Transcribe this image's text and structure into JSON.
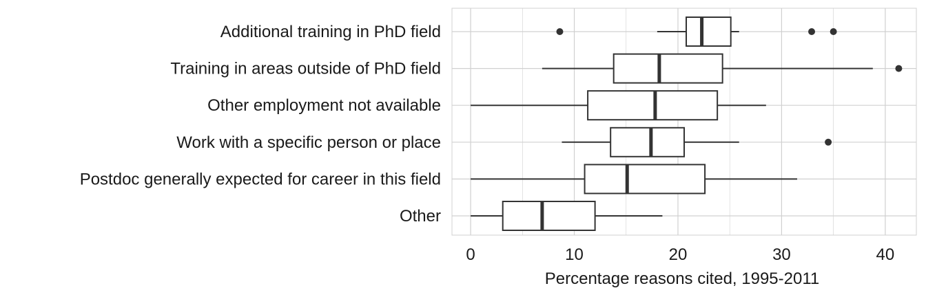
{
  "chart_data": {
    "type": "boxplot",
    "orientation": "horizontal",
    "title": "",
    "xlabel": "Percentage reasons cited, 1995-2011",
    "ylabel": "",
    "xlim": [
      -1.8,
      43
    ],
    "xticks": [
      0,
      10,
      20,
      30,
      40
    ],
    "xtick_labels": [
      "0",
      "10",
      "20",
      "30",
      "40"
    ],
    "grid": true,
    "legend": "none",
    "colors": {
      "box_stroke": "#333333",
      "box_fill": "#ffffff",
      "outlier": "#333333",
      "grid": "#d0d0d0"
    },
    "categories": [
      "Additional training in PhD field",
      "Training in areas outside of PhD field",
      "Other employment not available",
      "Work with a specific person or place",
      "Postdoc generally expected for career in this field",
      "Other"
    ],
    "boxes": [
      {
        "category": "Additional training in PhD field",
        "whisker_low": 18.0,
        "q1": 20.8,
        "median": 22.3,
        "q3": 25.1,
        "whisker_high": 25.9,
        "outliers": [
          8.6,
          32.9,
          35.0
        ]
      },
      {
        "category": "Training in areas outside of PhD field",
        "whisker_low": 6.9,
        "q1": 13.8,
        "median": 18.2,
        "q3": 24.3,
        "whisker_high": 38.8,
        "outliers": [
          41.3
        ]
      },
      {
        "category": "Other employment not available",
        "whisker_low": 0.0,
        "q1": 11.3,
        "median": 17.8,
        "q3": 23.8,
        "whisker_high": 28.5,
        "outliers": []
      },
      {
        "category": "Work with a specific person or place",
        "whisker_low": 8.8,
        "q1": 13.5,
        "median": 17.4,
        "q3": 20.6,
        "whisker_high": 25.9,
        "outliers": [
          34.5
        ]
      },
      {
        "category": "Postdoc generally expected for career in this field",
        "whisker_low": 0.0,
        "q1": 11.0,
        "median": 15.1,
        "q3": 22.6,
        "whisker_high": 31.5,
        "outliers": []
      },
      {
        "category": "Other",
        "whisker_low": 0.0,
        "q1": 3.1,
        "median": 6.9,
        "q3": 12.0,
        "whisker_high": 18.5,
        "outliers": []
      }
    ]
  }
}
